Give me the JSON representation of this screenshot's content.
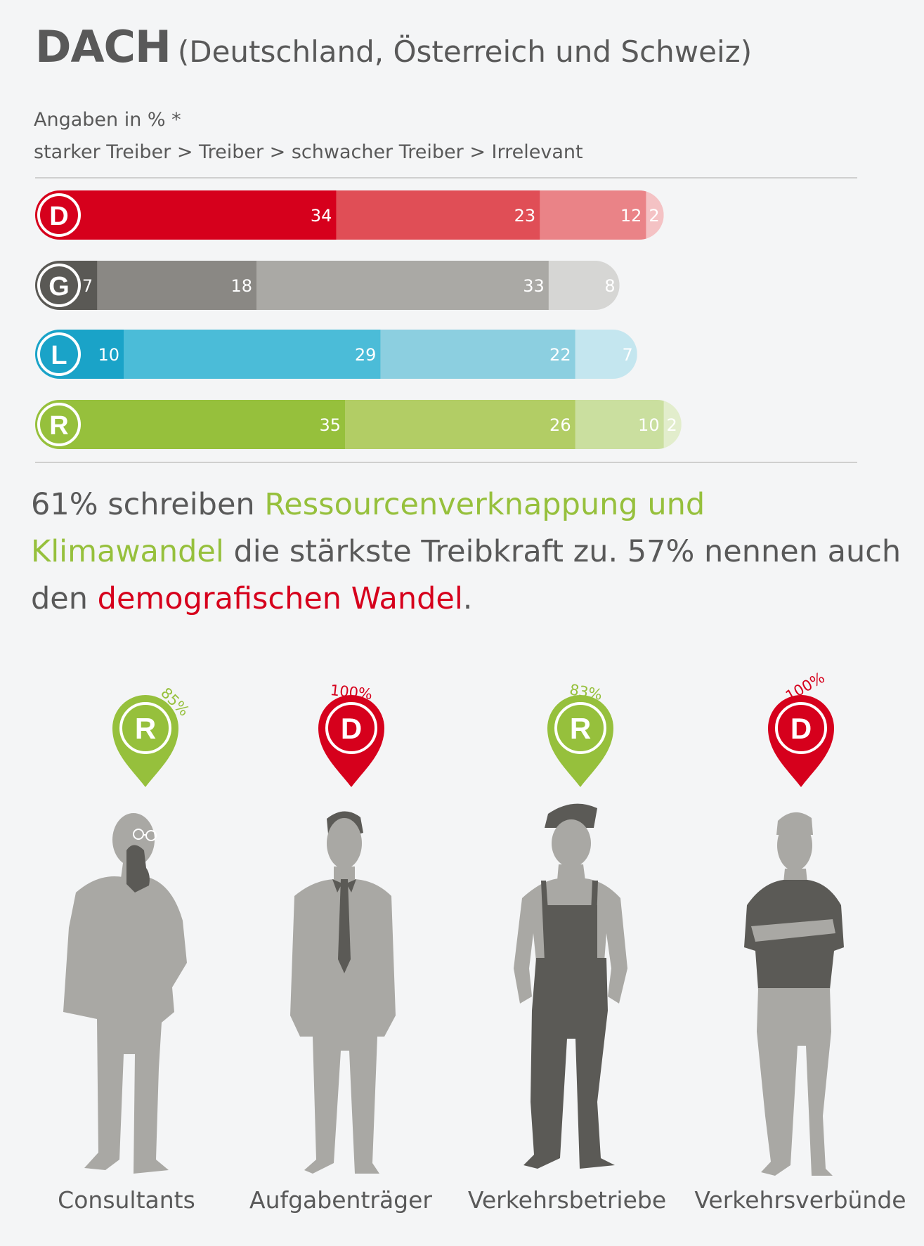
{
  "header": {
    "title": "DACH",
    "subtitle": "(Deutschland, Österreich und Schweiz)",
    "unit_note": "Angaben in % *",
    "scale_note": "starker Treiber > Treiber > schwacher Treiber > Irrelevant"
  },
  "chart_data": {
    "type": "bar",
    "orientation": "horizontal-stacked",
    "categories": [
      "D",
      "G",
      "L",
      "R"
    ],
    "series": [
      {
        "name": "starker Treiber",
        "values": [
          34,
          7,
          10,
          35
        ]
      },
      {
        "name": "Treiber",
        "values": [
          23,
          18,
          29,
          26
        ]
      },
      {
        "name": "schwacher Treiber",
        "values": [
          12,
          33,
          22,
          10
        ]
      },
      {
        "name": "Irrelevant",
        "values": [
          2,
          8,
          7,
          2
        ]
      }
    ],
    "colors": {
      "D": [
        "#d6001c",
        "#e04e56",
        "#ea8387",
        "#f4c2c4"
      ],
      "G": [
        "#5a5955",
        "#8a8884",
        "#aaa9a5",
        "#d6d6d4"
      ],
      "L": [
        "#1aa3c8",
        "#4bbcd8",
        "#8ccfe0",
        "#c4e6ef"
      ],
      "R": [
        "#96c03c",
        "#b2cd65",
        "#cadf9f",
        "#e2edcc"
      ]
    },
    "xlim": [
      0,
      100
    ],
    "grid": false,
    "legend": "none"
  },
  "quote": {
    "part1": "61% schreiben ",
    "highlight1": "Ressourcenverknappung und Klimawandel",
    "part2": " die stärkste Treibkraft zu. 57% nennen auch den ",
    "highlight2": "demografischen Wandel",
    "part3": "."
  },
  "roles": [
    {
      "label": "Consultants",
      "badge": "R",
      "percent": "85%",
      "color": "#96c03c"
    },
    {
      "label": "Aufgabenträger",
      "badge": "D",
      "percent": "100%",
      "color": "#d6001c"
    },
    {
      "label": "Verkehrsbetriebe",
      "badge": "R",
      "percent": "83%",
      "color": "#96c03c"
    },
    {
      "label": "Verkehrsverbünde",
      "badge": "D",
      "percent": "100%",
      "color": "#d6001c"
    }
  ],
  "figure_colors": {
    "light": "#a9a8a4",
    "dark": "#5b5a56"
  }
}
